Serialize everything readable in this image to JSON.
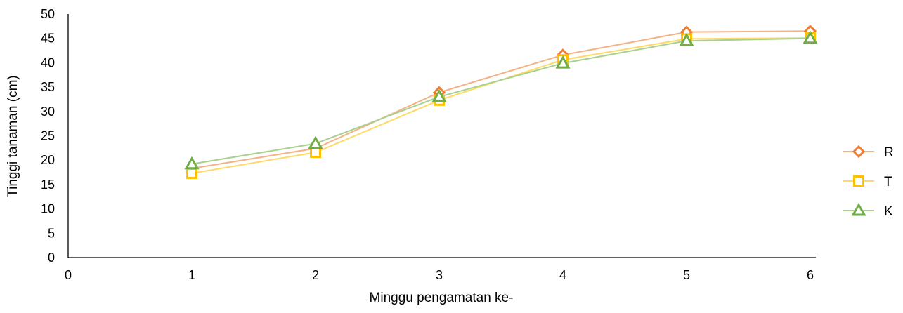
{
  "chart_data": {
    "type": "line",
    "title": "",
    "xlabel": "Minggu pengamatan ke-",
    "ylabel": "Tinggi tanaman (cm)",
    "xlim": [
      0,
      6
    ],
    "ylim": [
      0,
      50
    ],
    "x_ticks": [
      0,
      1,
      2,
      3,
      4,
      5,
      6
    ],
    "y_ticks": [
      0,
      5,
      10,
      15,
      20,
      25,
      30,
      35,
      40,
      45,
      50
    ],
    "grid": false,
    "legend_position": "right",
    "x": [
      1,
      2,
      3,
      4,
      5,
      6
    ],
    "series": [
      {
        "name": "R",
        "marker": "diamond",
        "line_color": "#F4B183",
        "marker_color": "#ED7D31",
        "values": [
          18.3,
          22.4,
          33.9,
          41.6,
          46.3,
          46.5
        ]
      },
      {
        "name": "T",
        "marker": "square",
        "line_color": "#FFD966",
        "marker_color": "#FFC000",
        "values": [
          17.3,
          21.6,
          32.3,
          40.6,
          44.9,
          45.1
        ]
      },
      {
        "name": "K",
        "marker": "triangle",
        "line_color": "#A9D18E",
        "marker_color": "#70AD47",
        "values": [
          19.2,
          23.4,
          33.0,
          39.9,
          44.5,
          45.0
        ]
      }
    ]
  }
}
